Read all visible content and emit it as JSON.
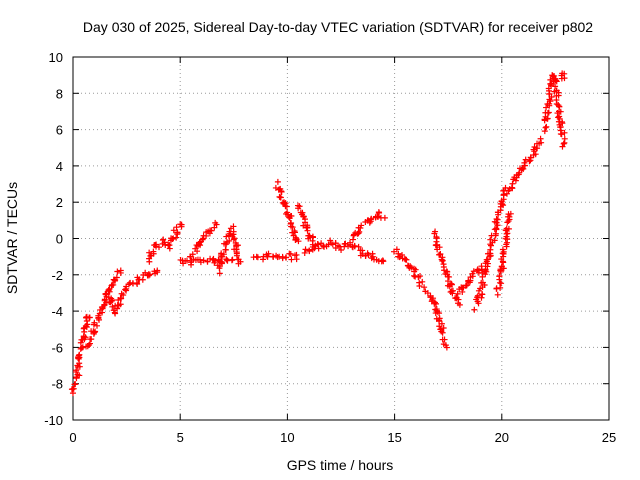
{
  "chart_data": {
    "type": "scatter",
    "title": "Day 030 of 2025, Sidereal Day-to-day VTEC variation (SDTVAR) for receiver p802",
    "xlabel": "GPS time / hours",
    "ylabel": "SDTVAR / TECUs",
    "xlim": [
      0,
      25
    ],
    "ylim": [
      -10,
      10
    ],
    "xticks": [
      "0",
      "5",
      "10",
      "15",
      "20",
      "25"
    ],
    "yticks": [
      "-10",
      "-8",
      "-6",
      "-4",
      "-2",
      "0",
      "2",
      "4",
      "6",
      "8",
      "10"
    ],
    "grid": true,
    "marker": "+",
    "color": "#ff0000",
    "series": [
      {
        "name": "SDTVAR",
        "segments": [
          [
            [
              0.0,
              -8.5
            ],
            [
              0.2,
              -7.5
            ],
            [
              0.3,
              -6.5
            ],
            [
              0.5,
              -5.5
            ],
            [
              0.6,
              -4.5
            ],
            [
              0.8,
              -4.2
            ]
          ],
          [
            [
              0.7,
              -6.0
            ],
            [
              1.0,
              -5.0
            ],
            [
              1.3,
              -4.2
            ],
            [
              1.5,
              -3.5
            ],
            [
              1.7,
              -2.8
            ],
            [
              1.9,
              -2.2
            ],
            [
              2.2,
              -1.8
            ]
          ],
          [
            [
              1.5,
              -3.0
            ],
            [
              1.8,
              -3.5
            ],
            [
              2.0,
              -4.0
            ],
            [
              2.3,
              -3.2
            ],
            [
              2.6,
              -2.6
            ],
            [
              3.0,
              -2.3
            ],
            [
              3.4,
              -2.0
            ],
            [
              4.0,
              -1.8
            ]
          ],
          [
            [
              3.5,
              -1.2
            ],
            [
              3.8,
              -0.5
            ],
            [
              4.2,
              -0.2
            ],
            [
              4.5,
              -0.5
            ],
            [
              4.8,
              0.4
            ],
            [
              5.1,
              0.8
            ]
          ],
          [
            [
              5.0,
              -1.3
            ],
            [
              5.5,
              -1.3
            ],
            [
              6.0,
              -1.2
            ],
            [
              6.5,
              -1.2
            ],
            [
              7.0,
              -1.3
            ],
            [
              7.5,
              -1.2
            ]
          ],
          [
            [
              5.5,
              -1.0
            ],
            [
              5.9,
              -0.2
            ],
            [
              6.3,
              0.3
            ],
            [
              6.7,
              0.7
            ]
          ],
          [
            [
              6.8,
              -1.8
            ],
            [
              7.0,
              -0.8
            ],
            [
              7.2,
              0.0
            ],
            [
              7.4,
              0.5
            ],
            [
              7.6,
              -0.5
            ],
            [
              7.8,
              -1.5
            ]
          ],
          [
            [
              8.5,
              -1.0
            ],
            [
              9.0,
              -1.0
            ],
            [
              9.5,
              -0.9
            ],
            [
              10.0,
              -1.0
            ],
            [
              10.5,
              -1.0
            ]
          ],
          [
            [
              9.5,
              3.0
            ],
            [
              9.7,
              2.4
            ],
            [
              9.9,
              1.8
            ],
            [
              10.1,
              1.1
            ],
            [
              10.3,
              0.4
            ],
            [
              10.5,
              -0.2
            ]
          ],
          [
            [
              10.5,
              1.8
            ],
            [
              10.7,
              1.2
            ],
            [
              10.9,
              0.5
            ],
            [
              11.1,
              0.0
            ],
            [
              11.3,
              -0.5
            ]
          ],
          [
            [
              10.8,
              -0.8
            ],
            [
              11.5,
              -0.4
            ],
            [
              12.0,
              -0.2
            ],
            [
              12.5,
              -0.5
            ],
            [
              13.0,
              -0.3
            ],
            [
              13.5,
              -0.8
            ],
            [
              14.0,
              -1.0
            ],
            [
              14.5,
              -1.2
            ]
          ],
          [
            [
              13.0,
              0.0
            ],
            [
              13.4,
              0.5
            ],
            [
              13.8,
              1.0
            ],
            [
              14.2,
              1.3
            ],
            [
              14.5,
              1.2
            ]
          ],
          [
            [
              15.0,
              -0.6
            ],
            [
              15.3,
              -1.0
            ],
            [
              15.7,
              -1.5
            ],
            [
              16.0,
              -2.0
            ],
            [
              16.3,
              -2.6
            ]
          ],
          [
            [
              16.5,
              -3.0
            ],
            [
              16.8,
              -3.5
            ],
            [
              17.0,
              -4.2
            ],
            [
              17.2,
              -5.0
            ],
            [
              17.4,
              -5.9
            ]
          ],
          [
            [
              16.8,
              0.3
            ],
            [
              17.0,
              -0.5
            ],
            [
              17.2,
              -1.2
            ],
            [
              17.4,
              -2.0
            ],
            [
              17.6,
              -2.6
            ],
            [
              17.8,
              -3.2
            ],
            [
              18.0,
              -3.5
            ]
          ],
          [
            [
              18.0,
              -3.0
            ],
            [
              18.3,
              -2.6
            ],
            [
              18.6,
              -2.2
            ],
            [
              18.9,
              -1.8
            ],
            [
              19.2,
              -1.5
            ]
          ],
          [
            [
              18.8,
              -3.8
            ],
            [
              19.0,
              -3.0
            ],
            [
              19.2,
              -2.0
            ],
            [
              19.4,
              -1.0
            ],
            [
              19.6,
              0.0
            ],
            [
              19.8,
              1.0
            ],
            [
              20.0,
              2.0
            ],
            [
              20.2,
              2.8
            ]
          ],
          [
            [
              19.8,
              -3.0
            ],
            [
              20.0,
              -1.5
            ],
            [
              20.2,
              0.0
            ],
            [
              20.4,
              1.5
            ]
          ],
          [
            [
              20.3,
              2.5
            ],
            [
              20.6,
              3.2
            ],
            [
              20.9,
              3.7
            ],
            [
              21.2,
              4.2
            ],
            [
              21.5,
              4.8
            ],
            [
              21.8,
              5.5
            ]
          ],
          [
            [
              22.0,
              6.0
            ],
            [
              22.1,
              6.8
            ],
            [
              22.2,
              7.5
            ],
            [
              22.3,
              8.5
            ],
            [
              22.4,
              9.0
            ],
            [
              22.5,
              8.5
            ],
            [
              22.6,
              7.5
            ],
            [
              22.7,
              6.8
            ],
            [
              22.8,
              6.0
            ],
            [
              22.9,
              5.2
            ]
          ],
          [
            [
              22.8,
              8.9
            ],
            [
              22.9,
              9.0
            ]
          ]
        ]
      }
    ]
  }
}
